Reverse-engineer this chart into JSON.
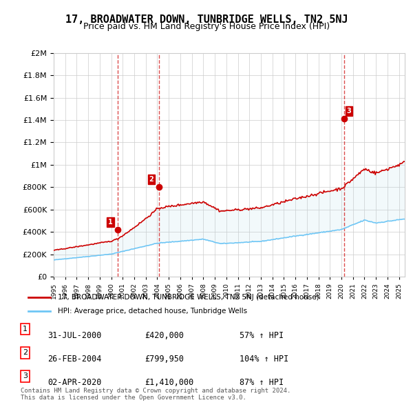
{
  "title": "17, BROADWATER DOWN, TUNBRIDGE WELLS, TN2 5NJ",
  "subtitle": "Price paid vs. HM Land Registry's House Price Index (HPI)",
  "legend_line1": "17, BROADWATER DOWN, TUNBRIDGE WELLS, TN2 5NJ (detached house)",
  "legend_line2": "HPI: Average price, detached house, Tunbridge Wells",
  "transactions": [
    {
      "num": 1,
      "date": "31-JUL-2000",
      "price": 420000,
      "pct": "57%",
      "dir": "↑"
    },
    {
      "num": 2,
      "date": "26-FEB-2004",
      "price": 799950,
      "pct": "104%",
      "dir": "↑"
    },
    {
      "num": 3,
      "date": "02-APR-2020",
      "price": 1410000,
      "pct": "87%",
      "dir": "↑"
    }
  ],
  "footer": "Contains HM Land Registry data © Crown copyright and database right 2024.\nThis data is licensed under the Open Government Licence v3.0.",
  "hpi_color": "#6ec6f5",
  "price_color": "#cc0000",
  "dashed_color": "#cc0000",
  "background_color": "#ffffff",
  "ylim": [
    0,
    2000000
  ],
  "yticks": [
    0,
    200000,
    400000,
    600000,
    800000,
    1000000,
    1200000,
    1400000,
    1600000,
    1800000,
    2000000
  ],
  "xstart": 1995.0,
  "xend": 2025.5
}
